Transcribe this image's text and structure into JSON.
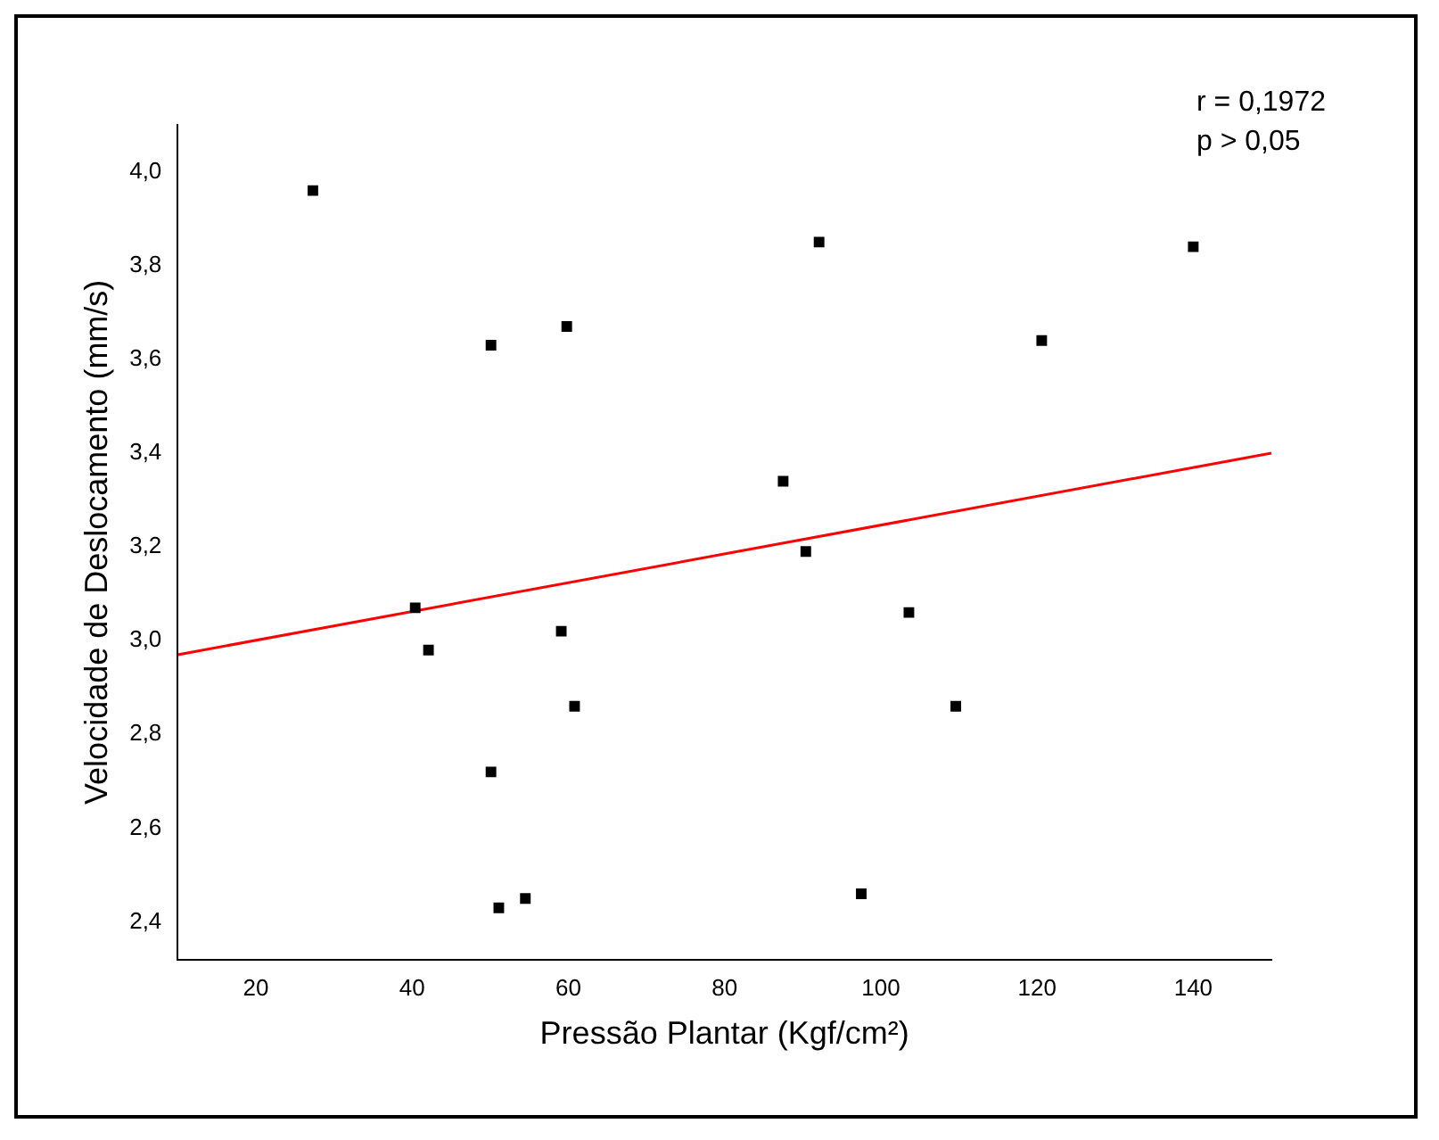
{
  "chart_data": {
    "type": "scatter",
    "xlabel": "Pressão Plantar (Kgf/cm²)",
    "ylabel": "Velocidade de Deslocamento (mm/s)",
    "xlim": [
      10,
      150
    ],
    "xticks": [
      20,
      40,
      60,
      80,
      100,
      120,
      140
    ],
    "ylim": [
      2.32,
      4.1
    ],
    "yticks": [
      {
        "value": 2.4,
        "label": "2,4"
      },
      {
        "value": 2.6,
        "label": "2,6"
      },
      {
        "value": 2.8,
        "label": "2,8"
      },
      {
        "value": 3.0,
        "label": "3,0"
      },
      {
        "value": 3.2,
        "label": "3,2"
      },
      {
        "value": 3.4,
        "label": "3,4"
      },
      {
        "value": 3.6,
        "label": "3,6"
      },
      {
        "value": 3.8,
        "label": "3,8"
      },
      {
        "value": 4.0,
        "label": "4,0"
      }
    ],
    "grid": false,
    "legend": false,
    "annotations": [
      "r = 0,1972",
      "p > 0,05"
    ],
    "series": [
      {
        "type": "scatter",
        "marker": "square",
        "color": "#000000",
        "x": [
          27.3,
          40.4,
          42.1,
          50.1,
          50.1,
          51.1,
          54.5,
          59.8,
          59.1,
          60.8,
          87.5,
          90.4,
          92.1,
          97.5,
          103.6,
          109.6,
          120.6,
          140
        ],
        "values": [
          3.96,
          3.07,
          2.98,
          3.63,
          2.72,
          2.43,
          2.45,
          3.67,
          3.02,
          2.86,
          3.34,
          3.19,
          3.85,
          2.46,
          3.06,
          2.86,
          3.64,
          3.84
        ]
      },
      {
        "type": "line",
        "color": "#ff0000",
        "x": [
          10,
          150
        ],
        "values": [
          2.97,
          3.4
        ]
      }
    ]
  }
}
